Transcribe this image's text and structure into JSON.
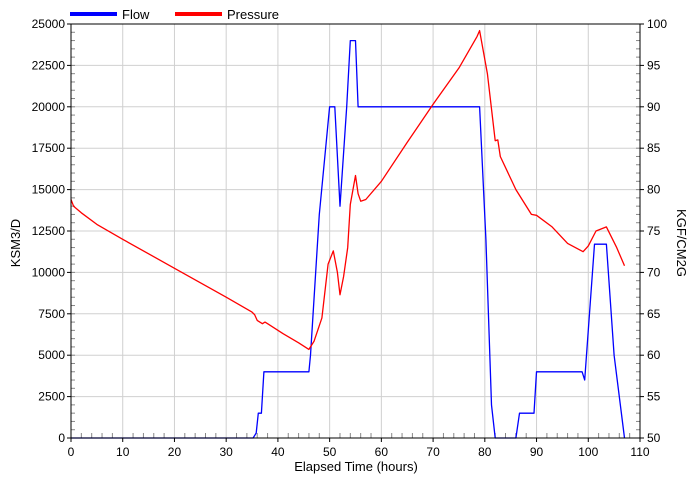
{
  "colors": {
    "flow": "#0000ff",
    "pressure": "#ff0000",
    "grid": "#d0d0d0",
    "axis": "#000000",
    "background": "#ffffff"
  },
  "chart_data": {
    "type": "line",
    "xlabel": "Elapsed Time (hours)",
    "ylabel_left": "KSM3/D",
    "ylabel_right": "KGF/CM2G",
    "xlim": [
      0,
      110
    ],
    "ylim_left": [
      0,
      25000
    ],
    "ylim_right": [
      50,
      100
    ],
    "x_ticks": [
      0,
      10,
      20,
      30,
      40,
      50,
      60,
      70,
      80,
      90,
      100,
      110
    ],
    "y_left_ticks": [
      0,
      2500,
      5000,
      7500,
      10000,
      12500,
      15000,
      17500,
      20000,
      22500,
      25000
    ],
    "y_right_ticks": [
      50,
      55,
      60,
      65,
      70,
      75,
      80,
      85,
      90,
      95,
      100
    ],
    "grid": true,
    "legend_position": "top-left",
    "series": [
      {
        "name": "Flow",
        "axis": "left",
        "color": "#0000ff",
        "points": [
          [
            0,
            0
          ],
          [
            35.2,
            0
          ],
          [
            35.8,
            300
          ],
          [
            36.2,
            1500
          ],
          [
            36.8,
            1500
          ],
          [
            37.3,
            4000
          ],
          [
            46,
            4000
          ],
          [
            46.3,
            5000
          ],
          [
            48,
            13500
          ],
          [
            50,
            20000
          ],
          [
            51,
            20000
          ],
          [
            52,
            14000
          ],
          [
            53.3,
            20000
          ],
          [
            54,
            24000
          ],
          [
            55,
            24000
          ],
          [
            55.5,
            20000
          ],
          [
            79,
            20000
          ],
          [
            80.2,
            12000
          ],
          [
            81.3,
            2000
          ],
          [
            82,
            0
          ],
          [
            86,
            0
          ],
          [
            86.7,
            1500
          ],
          [
            89.5,
            1500
          ],
          [
            90,
            4000
          ],
          [
            98.8,
            4000
          ],
          [
            99.3,
            3500
          ],
          [
            101.2,
            11700
          ],
          [
            103.5,
            11700
          ],
          [
            105,
            5000
          ],
          [
            107,
            0
          ]
        ]
      },
      {
        "name": "Pressure",
        "axis": "right",
        "color": "#ff0000",
        "points": [
          [
            0,
            78.8
          ],
          [
            0.5,
            78.0
          ],
          [
            2,
            77.2
          ],
          [
            5,
            75.8
          ],
          [
            10,
            74.0
          ],
          [
            20,
            70.5
          ],
          [
            30,
            67.0
          ],
          [
            35,
            65.2
          ],
          [
            35.5,
            64.9
          ],
          [
            36,
            64.2
          ],
          [
            37,
            63.8
          ],
          [
            37.5,
            64.0
          ],
          [
            38,
            63.8
          ],
          [
            41,
            62.6
          ],
          [
            44,
            61.5
          ],
          [
            46,
            60.7
          ],
          [
            47,
            61.7
          ],
          [
            48.5,
            64.5
          ],
          [
            49.7,
            71.0
          ],
          [
            50.7,
            72.6
          ],
          [
            51.5,
            70.0
          ],
          [
            52,
            67.3
          ],
          [
            52.7,
            69.5
          ],
          [
            53.5,
            73.0
          ],
          [
            54,
            78.2
          ],
          [
            55,
            81.7
          ],
          [
            55.5,
            79.5
          ],
          [
            56,
            78.6
          ],
          [
            57,
            78.8
          ],
          [
            60,
            81.0
          ],
          [
            65,
            85.7
          ],
          [
            70,
            90.3
          ],
          [
            75,
            94.7
          ],
          [
            78.5,
            98.5
          ],
          [
            79,
            99.2
          ],
          [
            80.5,
            94.0
          ],
          [
            82,
            85.9
          ],
          [
            82.5,
            86.0
          ],
          [
            83,
            84.0
          ],
          [
            86,
            80.0
          ],
          [
            89,
            77.0
          ],
          [
            90,
            76.9
          ],
          [
            93,
            75.5
          ],
          [
            96,
            73.5
          ],
          [
            99,
            72.5
          ],
          [
            100,
            73.2
          ],
          [
            101.5,
            75.0
          ],
          [
            103.5,
            75.5
          ],
          [
            105.5,
            73.0
          ],
          [
            107,
            70.8
          ]
        ]
      }
    ]
  }
}
